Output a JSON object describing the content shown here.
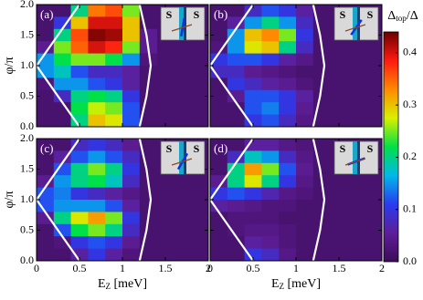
{
  "chart_data": [
    {
      "type": "heatmap",
      "label": "(a)",
      "inset": [
        "S",
        "S"
      ],
      "ylabel": "φ/π",
      "x": [
        0.1,
        0.3,
        0.5,
        0.7,
        0.9,
        1.1,
        1.3
      ],
      "y": [
        1.9,
        1.7,
        1.5,
        1.3,
        1.1,
        0.9,
        0.7,
        0.5,
        0.3,
        0.1
      ],
      "z": [
        [
          0.02,
          0.02,
          0.2,
          0.34,
          0.36,
          0.25,
          0.02
        ],
        [
          0.02,
          0.1,
          0.3,
          0.4,
          0.4,
          0.3,
          0.02
        ],
        [
          0.02,
          0.2,
          0.36,
          0.43,
          0.42,
          0.3,
          0.05
        ],
        [
          0.05,
          0.25,
          0.35,
          0.4,
          0.38,
          0.25,
          0.05
        ],
        [
          0.15,
          0.22,
          0.25,
          0.25,
          0.22,
          0.15,
          0.03
        ],
        [
          0.15,
          0.18,
          0.12,
          0.08,
          0.08,
          0.06,
          0.02
        ],
        [
          0.03,
          0.15,
          0.15,
          0.12,
          0.1,
          0.06,
          0.02
        ],
        [
          0.02,
          0.08,
          0.2,
          0.22,
          0.2,
          0.1,
          0.02
        ],
        [
          0.02,
          0.02,
          0.22,
          0.27,
          0.25,
          0.12,
          0.02
        ],
        [
          0.02,
          0.02,
          0.2,
          0.3,
          0.28,
          0.12,
          0.02
        ]
      ],
      "xlim": [
        0,
        2
      ],
      "ylim": [
        0,
        2
      ],
      "xticks": [
        0,
        0.5,
        1,
        1.5,
        2
      ],
      "yticks": [
        {
          "value": 0,
          "label": "0.0"
        },
        0.5,
        {
          "value": 1,
          "label": "1.0"
        },
        1.5,
        {
          "value": 2,
          "label": "2.0"
        }
      ]
    },
    {
      "type": "heatmap",
      "label": "(b)",
      "inset": [
        "S",
        "S"
      ],
      "x": [
        0.1,
        0.3,
        0.5,
        0.7,
        0.9,
        1.1,
        1.3
      ],
      "y": [
        1.9,
        1.7,
        1.5,
        1.3,
        1.1,
        0.9,
        0.7,
        0.5,
        0.3,
        0.1
      ],
      "z": [
        [
          0.02,
          0.02,
          0.08,
          0.12,
          0.1,
          0.06,
          0.02
        ],
        [
          0.02,
          0.06,
          0.15,
          0.2,
          0.15,
          0.08,
          0.02
        ],
        [
          0.02,
          0.15,
          0.3,
          0.33,
          0.25,
          0.1,
          0.02
        ],
        [
          0.03,
          0.15,
          0.28,
          0.3,
          0.2,
          0.08,
          0.02
        ],
        [
          0.1,
          0.12,
          0.12,
          0.1,
          0.06,
          0.04,
          0.02
        ],
        [
          0.08,
          0.08,
          0.05,
          0.04,
          0.03,
          0.02,
          0.02
        ],
        [
          0.02,
          0.1,
          0.08,
          0.06,
          0.05,
          0.03,
          0.02
        ],
        [
          0.02,
          0.05,
          0.12,
          0.12,
          0.1,
          0.06,
          0.02
        ],
        [
          0.02,
          0.02,
          0.12,
          0.14,
          0.1,
          0.05,
          0.02
        ],
        [
          0.02,
          0.02,
          0.1,
          0.12,
          0.08,
          0.04,
          0.02
        ]
      ],
      "xlim": [
        0,
        2
      ],
      "ylim": [
        0,
        2
      ],
      "xticks": [
        0,
        0.5,
        1,
        1.5,
        2
      ],
      "yticks": [
        0,
        0.5,
        1,
        1.5,
        2
      ]
    },
    {
      "type": "heatmap",
      "label": "(c)",
      "inset": [
        "S",
        "S"
      ],
      "ylabel": "φ/π",
      "xlabel": [
        "E",
        "Z",
        " [meV]"
      ],
      "x": [
        0.1,
        0.3,
        0.5,
        0.7,
        0.9,
        1.1,
        1.3
      ],
      "y": [
        1.9,
        1.7,
        1.5,
        1.3,
        1.1,
        0.9,
        0.7,
        0.5,
        0.3,
        0.1
      ],
      "z": [
        [
          0.02,
          0.02,
          0.08,
          0.1,
          0.08,
          0.05,
          0.02
        ],
        [
          0.02,
          0.06,
          0.12,
          0.15,
          0.12,
          0.08,
          0.02
        ],
        [
          0.02,
          0.12,
          0.2,
          0.25,
          0.2,
          0.1,
          0.02
        ],
        [
          0.05,
          0.15,
          0.2,
          0.22,
          0.18,
          0.08,
          0.02
        ],
        [
          0.12,
          0.14,
          0.1,
          0.08,
          0.06,
          0.04,
          0.02
        ],
        [
          0.12,
          0.15,
          0.15,
          0.15,
          0.12,
          0.06,
          0.02
        ],
        [
          0.05,
          0.2,
          0.28,
          0.32,
          0.25,
          0.1,
          0.02
        ],
        [
          0.02,
          0.12,
          0.22,
          0.25,
          0.2,
          0.08,
          0.02
        ],
        [
          0.02,
          0.03,
          0.1,
          0.12,
          0.1,
          0.05,
          0.02
        ],
        [
          0.02,
          0.02,
          0.06,
          0.1,
          0.06,
          0.03,
          0.02
        ]
      ],
      "xlim": [
        0,
        2
      ],
      "ylim": [
        0,
        2
      ],
      "xticks": [
        0,
        0.5,
        1,
        1.5,
        2
      ],
      "yticks": [
        {
          "value": 0,
          "label": "0.0"
        },
        0.5,
        {
          "value": 1,
          "label": "1.0"
        },
        1.5,
        {
          "value": 2,
          "label": "2.0"
        }
      ]
    },
    {
      "type": "heatmap",
      "label": "(d)",
      "inset": [
        "S",
        "S"
      ],
      "xlabel": [
        "E",
        "Z",
        " [meV]"
      ],
      "x": [
        0.1,
        0.3,
        0.5,
        0.7,
        0.9,
        1.1,
        1.3
      ],
      "y": [
        1.9,
        1.7,
        1.5,
        1.3,
        1.1,
        0.9,
        0.7,
        0.5,
        0.3,
        0.1
      ],
      "z": [
        [
          0.02,
          0.02,
          0.06,
          0.06,
          0.04,
          0.03,
          0.02
        ],
        [
          0.02,
          0.08,
          0.18,
          0.15,
          0.08,
          0.04,
          0.02
        ],
        [
          0.02,
          0.2,
          0.32,
          0.25,
          0.12,
          0.05,
          0.02
        ],
        [
          0.05,
          0.2,
          0.28,
          0.2,
          0.1,
          0.04,
          0.02
        ],
        [
          0.1,
          0.12,
          0.1,
          0.07,
          0.04,
          0.03,
          0.02
        ],
        [
          0.06,
          0.05,
          0.04,
          0.03,
          0.03,
          0.02,
          0.02
        ],
        [
          0.02,
          0.03,
          0.03,
          0.03,
          0.02,
          0.02,
          0.02
        ],
        [
          0.02,
          0.03,
          0.04,
          0.04,
          0.03,
          0.02,
          0.02
        ],
        [
          0.02,
          0.02,
          0.06,
          0.05,
          0.03,
          0.02,
          0.02
        ],
        [
          0.02,
          0.02,
          0.1,
          0.08,
          0.04,
          0.02,
          0.02
        ]
      ],
      "xlim": [
        0,
        2
      ],
      "ylim": [
        0,
        2
      ],
      "xticks": [
        0,
        0.5,
        1,
        1.5,
        2
      ],
      "yticks": [
        0,
        0.5,
        1,
        1.5,
        2
      ]
    }
  ],
  "boundary": {
    "x": [
      0.5,
      0.3,
      0.15,
      0,
      0.15,
      0.3,
      0.5
    ],
    "y": [
      2,
      1.6,
      1.3,
      1,
      0.7,
      0.4,
      0
    ],
    "x2": [
      1.2,
      1.28,
      1.33,
      1.28,
      1.2
    ],
    "y2": [
      2,
      1.5,
      1,
      0.5,
      0
    ]
  },
  "colorbar": {
    "title": [
      "Δ",
      "top",
      "/Δ"
    ],
    "ylim": [
      0,
      0.44
    ],
    "yticks": [
      {
        "value": 0,
        "label": "0.0"
      },
      0.1,
      0.2,
      0.3,
      0.4
    ],
    "colors": [
      "#3c0b58",
      "#5e1e98",
      "#2a3af0",
      "#00b8ea",
      "#00e048",
      "#d8f000",
      "#ff8a00",
      "#ff1a10",
      "#6a0000"
    ]
  }
}
